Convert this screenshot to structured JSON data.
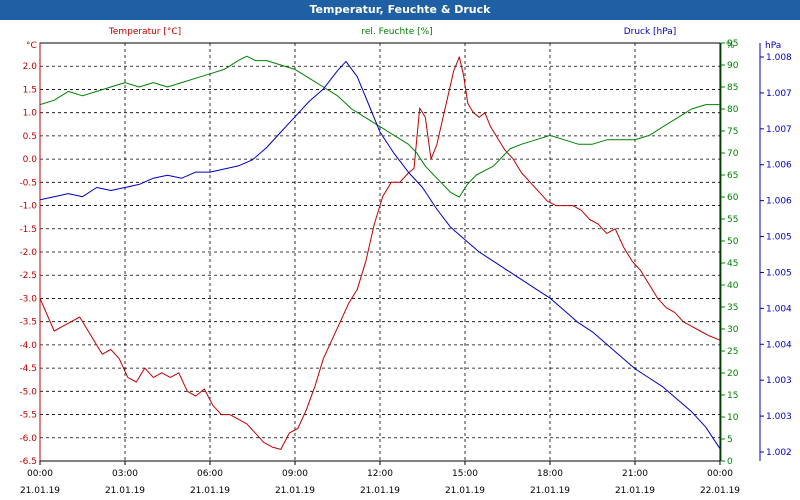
{
  "title": "Temperatur, Feuchte & Druck",
  "colors": {
    "temperature": "#c00000",
    "humidity": "#008000",
    "pressure": "#0000c0",
    "titlebar": "#1f5fa3"
  },
  "chart_data": {
    "type": "line",
    "grid": true,
    "x_ticks": [
      {
        "time": "00:00",
        "date": "21.01.19"
      },
      {
        "time": "03:00",
        "date": "21.01.19"
      },
      {
        "time": "06:00",
        "date": "21.01.19"
      },
      {
        "time": "09:00",
        "date": "21.01.19"
      },
      {
        "time": "12:00",
        "date": "21.01.19"
      },
      {
        "time": "15:00",
        "date": "21.01.19"
      },
      {
        "time": "18:00",
        "date": "21.01.19"
      },
      {
        "time": "21:00",
        "date": "21.01.19"
      },
      {
        "time": "00:00",
        "date": "22.01.19"
      }
    ],
    "xlim_hours": [
      0,
      24
    ],
    "axes": {
      "temperature": {
        "unit": "°C",
        "legend": "Temperatur [°C]",
        "ylim": [
          -6.5,
          2.5
        ],
        "ticks": [
          "2.0",
          "1.5",
          "1.0",
          "0.5",
          "0.0",
          "-0.5",
          "-1.0",
          "-1.5",
          "-2.0",
          "-2.5",
          "-3.0",
          "-3.5",
          "-4.0",
          "-4.5",
          "-5.0",
          "-5.5",
          "-6.0",
          "-6.5"
        ]
      },
      "humidity": {
        "unit": "%",
        "legend": "rel. Feuchte [%]",
        "ylim": [
          0,
          95
        ],
        "ticks": [
          "95",
          "90",
          "85",
          "80",
          "75",
          "70",
          "65",
          "60",
          "55",
          "50",
          "45",
          "40",
          "35",
          "30",
          "25",
          "20",
          "15",
          "10",
          "5",
          "0"
        ]
      },
      "pressure": {
        "unit": "hPa",
        "legend": "Druck [hPa]",
        "ylim": [
          1001.6,
          1008.4
        ],
        "ticks": [
          "1.008",
          "1.007",
          "1.007",
          "1.006",
          "1.006",
          "1.005",
          "1.005",
          "1.004",
          "1.004",
          "1.003",
          "1.003",
          "1.002"
        ]
      }
    },
    "series": [
      {
        "name": "Temperatur [°C]",
        "axis": "temperature",
        "x": [
          0,
          0.5,
          0.8,
          1.1,
          1.4,
          1.6,
          1.9,
          2.2,
          2.5,
          2.8,
          3.1,
          3.4,
          3.7,
          4.0,
          4.3,
          4.6,
          4.9,
          5.2,
          5.5,
          5.8,
          6.1,
          6.4,
          6.7,
          7.0,
          7.3,
          7.6,
          7.9,
          8.2,
          8.5,
          8.8,
          9.1,
          9.4,
          9.7,
          10.0,
          10.3,
          10.6,
          10.9,
          11.2,
          11.5,
          11.8,
          12.1,
          12.4,
          12.7,
          13.0,
          13.2,
          13.4,
          13.6,
          13.8,
          14.0,
          14.3,
          14.6,
          14.8,
          14.95,
          15.1,
          15.3,
          15.5,
          15.7,
          15.9,
          16.1,
          16.4,
          16.7,
          17.0,
          17.3,
          17.6,
          17.9,
          18.2,
          18.5,
          18.8,
          19.1,
          19.4,
          19.7,
          20.0,
          20.3,
          20.6,
          20.9,
          21.2,
          21.5,
          21.8,
          22.1,
          22.4,
          22.7,
          23.0,
          23.3,
          23.6,
          24.0
        ],
        "y": [
          -3.0,
          -3.7,
          -3.6,
          -3.5,
          -3.4,
          -3.6,
          -3.9,
          -4.2,
          -4.1,
          -4.3,
          -4.7,
          -4.8,
          -4.5,
          -4.7,
          -4.6,
          -4.7,
          -4.6,
          -5.0,
          -5.1,
          -4.95,
          -5.3,
          -5.5,
          -5.5,
          -5.6,
          -5.7,
          -5.9,
          -6.1,
          -6.2,
          -6.25,
          -5.9,
          -5.8,
          -5.4,
          -4.9,
          -4.3,
          -3.9,
          -3.5,
          -3.1,
          -2.8,
          -2.2,
          -1.4,
          -0.8,
          -0.5,
          -0.5,
          -0.3,
          -0.2,
          1.1,
          0.9,
          0.0,
          0.3,
          1.1,
          1.9,
          2.2,
          1.8,
          1.2,
          1.0,
          0.9,
          1.0,
          0.7,
          0.5,
          0.2,
          0.0,
          -0.3,
          -0.5,
          -0.7,
          -0.9,
          -1.0,
          -1.0,
          -1.0,
          -1.1,
          -1.3,
          -1.4,
          -1.6,
          -1.5,
          -1.9,
          -2.2,
          -2.4,
          -2.7,
          -3.0,
          -3.2,
          -3.3,
          -3.5,
          -3.6,
          -3.7,
          -3.8,
          -3.9
        ]
      },
      {
        "name": "rel. Feuchte [%]",
        "axis": "humidity",
        "x": [
          0,
          0.5,
          1.0,
          1.5,
          2.0,
          2.5,
          3.0,
          3.5,
          4.0,
          4.5,
          5.0,
          5.5,
          6.0,
          6.5,
          7.0,
          7.3,
          7.6,
          8.0,
          8.5,
          9.0,
          9.5,
          10.0,
          10.5,
          11.0,
          11.5,
          12.0,
          12.5,
          13.0,
          13.3,
          13.6,
          13.9,
          14.2,
          14.5,
          14.8,
          15.1,
          15.4,
          15.7,
          16.0,
          16.3,
          16.6,
          17.0,
          17.5,
          18.0,
          18.5,
          19.0,
          19.5,
          20.0,
          20.5,
          21.0,
          21.5,
          22.0,
          22.5,
          23.0,
          23.5,
          24.0
        ],
        "y": [
          81,
          82,
          84,
          83,
          84,
          85,
          86,
          85,
          86,
          85,
          86,
          87,
          88,
          89,
          91,
          92,
          91,
          91,
          90,
          89,
          87,
          85,
          83,
          80,
          78,
          76,
          74,
          72,
          70,
          67,
          65,
          63,
          61,
          60,
          63,
          65,
          66,
          67,
          69,
          71,
          72,
          73,
          74,
          73,
          72,
          72,
          73,
          73,
          73,
          74,
          76,
          78,
          80,
          81,
          81
        ]
      },
      {
        "name": "Druck [hPa]",
        "axis": "pressure",
        "x": [
          0,
          0.5,
          1.0,
          1.5,
          2.0,
          2.5,
          3.0,
          3.5,
          4.0,
          4.5,
          5.0,
          5.5,
          6.0,
          6.5,
          7.0,
          7.5,
          8.0,
          8.5,
          9.0,
          9.5,
          10.0,
          10.5,
          10.8,
          11.2,
          11.6,
          12.0,
          12.5,
          13.0,
          13.5,
          14.0,
          14.5,
          15.0,
          15.5,
          16.0,
          16.5,
          17.0,
          17.5,
          18.0,
          18.5,
          19.0,
          19.5,
          20.0,
          20.5,
          21.0,
          21.5,
          22.0,
          22.5,
          23.0,
          23.5,
          24.0
        ],
        "y": [
          1005.85,
          1005.9,
          1005.95,
          1005.9,
          1006.05,
          1006.0,
          1006.05,
          1006.1,
          1006.2,
          1006.25,
          1006.2,
          1006.3,
          1006.3,
          1006.35,
          1006.4,
          1006.5,
          1006.7,
          1006.95,
          1007.2,
          1007.45,
          1007.65,
          1007.95,
          1008.1,
          1007.85,
          1007.4,
          1006.95,
          1006.6,
          1006.3,
          1006.05,
          1005.7,
          1005.4,
          1005.2,
          1005.0,
          1004.85,
          1004.7,
          1004.55,
          1004.4,
          1004.25,
          1004.05,
          1003.85,
          1003.7,
          1003.5,
          1003.3,
          1003.1,
          1002.95,
          1002.8,
          1002.6,
          1002.4,
          1002.15,
          1001.8
        ]
      }
    ]
  }
}
